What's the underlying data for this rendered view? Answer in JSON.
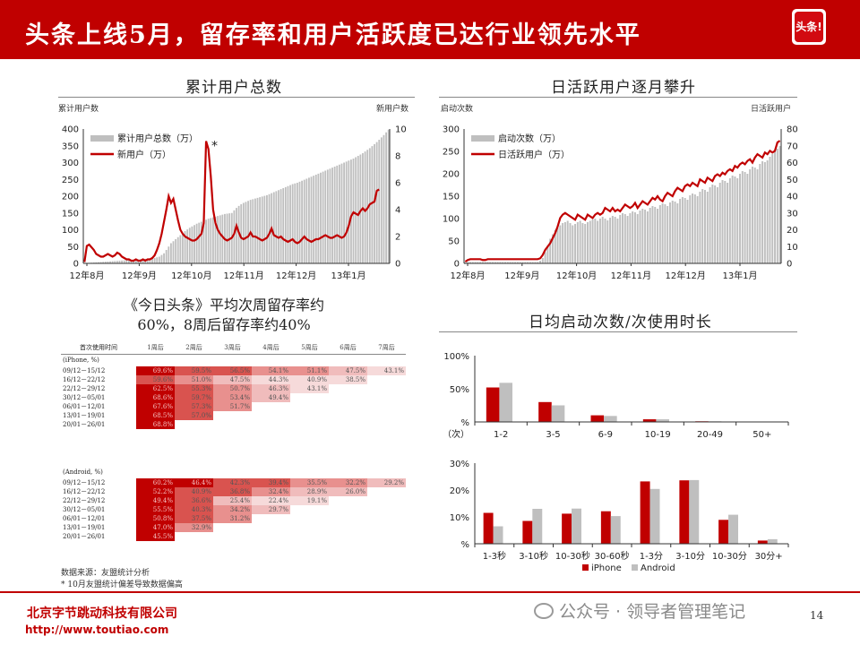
{
  "header": {
    "title": "头条上线5月，留存率和用户活跃度已达行业领先水平",
    "logo_text": "头条!",
    "colors": {
      "brand_red": "#c00000",
      "bar_gray": "#bfbfbf"
    }
  },
  "panel1": {
    "title": "累计用户总数",
    "left_axis_label": "累计用户数",
    "right_axis_label": "新用户数",
    "asterisk": "*"
  },
  "panel2": {
    "title": "日活跃用户逐月攀升",
    "left_axis_label": "启动次数",
    "right_axis_label": "日活跃用户"
  },
  "retention": {
    "heading_line1": "《今日头条》平均次周留存率约",
    "heading_line2": "60%，8周后留存率约40%",
    "header": [
      "首次使用时间",
      "1周后",
      "2周后",
      "3周后",
      "4周后",
      "5周后",
      "6周后",
      "7周后"
    ],
    "iphone_label": "(iPhone, %)",
    "iphone_rows": [
      {
        "period": "09/12－15/12",
        "values": [
          "69.6%",
          "59.5%",
          "56.5%",
          "54.1%",
          "51.1%",
          "47.5%",
          "43.1%"
        ]
      },
      {
        "period": "16/12－22/12",
        "values": [
          "59.6%",
          "51.0%",
          "47.5%",
          "44.3%",
          "40.9%",
          "38.5%"
        ]
      },
      {
        "period": "22/12－29/12",
        "values": [
          "62.5%",
          "55.3%",
          "50.7%",
          "46.3%",
          "43.1%"
        ]
      },
      {
        "period": "30/12－05/01",
        "values": [
          "68.6%",
          "59.7%",
          "53.4%",
          "49.4%"
        ]
      },
      {
        "period": "06/01－12/01",
        "values": [
          "67.6%",
          "57.3%",
          "51.7%"
        ]
      },
      {
        "period": "13/01－19/01",
        "values": [
          "68.5%",
          "57.0%"
        ]
      },
      {
        "period": "20/01－26/01",
        "values": [
          "68.8%"
        ]
      }
    ],
    "android_label": "(Android, %)",
    "android_rows": [
      {
        "period": "09/12－15/12",
        "values": [
          "60.2%",
          "46.4%",
          "42.3%",
          "39.4%",
          "35.5%",
          "32.2%",
          "29.2%"
        ]
      },
      {
        "period": "16/12－22/12",
        "values": [
          "52.2%",
          "40.9%",
          "36.8%",
          "32.4%",
          "28.9%",
          "26.0%"
        ]
      },
      {
        "period": "22/12－29/12",
        "values": [
          "49.4%",
          "36.6%",
          "25.4%",
          "22.4%",
          "19.1%"
        ]
      },
      {
        "period": "30/12－05/01",
        "values": [
          "55.5%",
          "40.3%",
          "34.2%",
          "29.7%"
        ]
      },
      {
        "period": "06/01－12/01",
        "values": [
          "50.8%",
          "37.5%",
          "31.2%"
        ]
      },
      {
        "period": "13/01－19/01",
        "values": [
          "47.0%",
          "32.9%"
        ]
      },
      {
        "period": "20/01－26/01",
        "values": [
          "45.5%"
        ]
      }
    ],
    "source_line1": "数据来源：友盟统计分析",
    "source_line2": "* 10月友盟统计偏差导致数据偏高"
  },
  "panel3": {
    "title": "日均启动次数/次使用时长"
  },
  "footer": {
    "company": "北京字节跳动科技有限公司",
    "url": "http://www.toutiao.com",
    "watermark": "公众号 · 领导者管理笔记",
    "page_number": "14"
  },
  "chart_data": [
    {
      "type": "bar",
      "subtype": "bar+line (dual axis)",
      "title": "累计用户总数",
      "ylabel": "累计用户数",
      "y2label": "新用户数",
      "ylim": [
        0,
        400
      ],
      "y2lim": [
        0,
        10
      ],
      "x_tick_labels": [
        "12年8月",
        "12年9月",
        "12年10月",
        "12年11月",
        "12年12月",
        "13年1月"
      ],
      "y_ticks": [
        "0",
        "50",
        "100",
        "150",
        "200",
        "250",
        "300",
        "350",
        "400"
      ],
      "y2_ticks": [
        "0",
        "2",
        "4",
        "6",
        "8",
        "10"
      ],
      "annotation": "*",
      "legend": "top-left",
      "series": [
        {
          "name": "累计用户总数（万）",
          "kind": "bar",
          "axis": "left",
          "values": [
            0.5,
            1,
            1.5,
            2,
            2.5,
            3,
            3.5,
            4,
            4.5,
            5,
            5.5,
            6,
            6.5,
            7,
            7.5,
            8,
            8.5,
            9,
            9.5,
            10,
            10.5,
            11,
            11.5,
            12,
            12.5,
            13,
            13.5,
            14,
            14.5,
            15,
            16,
            18,
            20,
            25,
            30,
            40,
            50,
            60,
            66,
            72,
            78,
            84,
            90,
            96,
            101,
            106,
            110,
            114,
            118,
            121,
            124,
            127,
            130,
            133,
            135,
            137,
            139,
            141,
            143,
            145,
            147,
            148,
            149,
            150,
            158,
            165,
            171,
            176,
            180,
            183,
            186,
            189,
            191,
            193,
            195,
            197,
            199,
            201,
            203,
            206,
            209,
            212,
            215,
            218,
            221,
            224,
            227,
            230,
            233,
            236,
            238,
            240,
            243,
            246,
            249,
            252,
            255,
            258,
            261,
            264,
            267,
            270,
            273,
            276,
            279,
            282,
            285,
            288,
            291,
            294,
            297,
            300,
            303,
            306,
            309,
            312,
            316,
            320,
            324,
            328,
            333,
            338,
            343,
            349,
            355,
            361,
            368,
            375,
            382,
            390,
            398
          ]
        },
        {
          "name": "新用户（万）",
          "kind": "line",
          "axis": "right",
          "values": [
            0.1,
            1.3,
            1.4,
            1.2,
            1,
            0.7,
            0.6,
            0.5,
            0.5,
            0.6,
            0.7,
            0.6,
            0.5,
            0.6,
            0.8,
            0.7,
            0.5,
            0.4,
            0.3,
            0.3,
            0.2,
            0.2,
            0.3,
            0.2,
            0.2,
            0.3,
            0.2,
            0.3,
            0.3,
            0.4,
            0.6,
            1,
            1.5,
            2.2,
            3.1,
            4,
            5,
            4.5,
            4.8,
            4,
            3.2,
            2.5,
            2.2,
            2,
            1.9,
            1.8,
            1.7,
            1.7,
            1.8,
            2,
            2.2,
            3,
            9.1,
            8.5,
            6.5,
            4,
            3,
            2.5,
            2.2,
            2,
            1.8,
            1.7,
            1.8,
            1.9,
            2.2,
            2.8,
            2.3,
            1.9,
            1.8,
            1.9,
            2,
            2.3,
            2,
            2,
            1.9,
            1.8,
            1.7,
            1.8,
            1.9,
            2.2,
            2.6,
            2.1,
            2,
            1.9,
            2,
            1.8,
            1.7,
            1.6,
            1.7,
            1.8,
            1.6,
            1.5,
            1.6,
            1.8,
            2,
            1.8,
            1.7,
            1.6,
            1.7,
            1.8,
            1.8,
            1.9,
            2,
            2.1,
            2,
            1.9,
            1.9,
            2,
            2.1,
            2,
            1.9,
            2,
            2.3,
            2.8,
            3.5,
            3.8,
            3.7,
            3.6,
            3.9,
            4.1,
            3.9,
            4.1,
            4.4,
            4.5,
            4.6,
            5.4,
            5.5
          ]
        }
      ]
    },
    {
      "type": "bar",
      "subtype": "bar+line (dual axis)",
      "title": "日活跃用户逐月攀升",
      "ylabel": "启动次数",
      "y2label": "日活跃用户",
      "ylim": [
        0,
        300
      ],
      "y2lim": [
        0,
        80
      ],
      "x_tick_labels": [
        "12年8月",
        "12年9月",
        "12年10月",
        "12年11月",
        "12年12月",
        "13年1月"
      ],
      "y_ticks": [
        "0",
        "50",
        "100",
        "150",
        "200",
        "250",
        "300"
      ],
      "y2_ticks": [
        "0",
        "10",
        "20",
        "30",
        "40",
        "50",
        "60",
        "70",
        "80"
      ],
      "legend": "top-left",
      "series": [
        {
          "name": "启动次数（万）",
          "kind": "bar",
          "axis": "left",
          "values": [
            2,
            3,
            3,
            3,
            3,
            3,
            3,
            3,
            3,
            3,
            3,
            3,
            3,
            3,
            3,
            3,
            3,
            3,
            3,
            3,
            3,
            3,
            3,
            3,
            3,
            3,
            3,
            3,
            3,
            3,
            6,
            12,
            25,
            40,
            55,
            65,
            75,
            80,
            85,
            90,
            92,
            95,
            90,
            85,
            88,
            92,
            95,
            90,
            88,
            92,
            95,
            98,
            100,
            95,
            100,
            104,
            100,
            96,
            102,
            106,
            104,
            100,
            108,
            112,
            110,
            106,
            112,
            116,
            114,
            110,
            118,
            122,
            120,
            116,
            124,
            128,
            126,
            122,
            130,
            134,
            132,
            128,
            136,
            140,
            138,
            134,
            144,
            148,
            146,
            142,
            152,
            156,
            154,
            150,
            160,
            166,
            164,
            160,
            170,
            176,
            174,
            170,
            180,
            186,
            184,
            180,
            190,
            196,
            194,
            190,
            200,
            206,
            204,
            200,
            210,
            216,
            214,
            210,
            222,
            228,
            226,
            230,
            238,
            244,
            250,
            256,
            262
          ]
        },
        {
          "name": "日活跃用户（万）",
          "kind": "line",
          "axis": "right",
          "values": [
            1,
            2,
            2.5,
            2.5,
            2.5,
            2.5,
            2.5,
            2,
            2,
            2.5,
            2.5,
            2.5,
            2.5,
            2.5,
            2.5,
            2.5,
            2.5,
            2.5,
            2.5,
            2.5,
            2.5,
            2.5,
            2.5,
            2.5,
            2.5,
            2.5,
            2.5,
            2.5,
            2.5,
            2.5,
            3,
            5,
            8,
            10,
            12,
            15,
            18,
            22,
            27,
            29,
            30,
            29,
            28,
            27,
            26,
            29,
            28,
            27,
            26,
            29,
            28,
            27,
            29,
            30,
            29,
            30,
            33,
            32,
            31,
            33,
            31,
            32,
            31,
            33,
            35,
            34,
            33,
            34,
            36,
            33,
            35,
            37,
            36,
            35,
            37,
            39,
            38,
            40,
            38,
            37,
            40,
            42,
            41,
            40,
            43,
            45,
            44,
            43,
            46,
            47,
            46,
            48,
            47,
            46,
            50,
            49,
            48,
            51,
            50,
            49,
            52,
            53,
            52,
            54,
            53,
            55,
            56,
            55,
            58,
            57,
            59,
            60,
            59,
            61,
            62,
            60,
            63,
            65,
            64,
            63,
            66,
            65,
            67,
            66,
            67,
            72,
            73
          ]
        }
      ]
    },
    {
      "type": "bar",
      "title": "日均启动次数",
      "xlabel": "（次）",
      "categories": [
        "1-2",
        "3-5",
        "6-9",
        "10-19",
        "20-49",
        "50+"
      ],
      "ylim": [
        0,
        100
      ],
      "y_ticks": [
        "%",
        "50%",
        "100%"
      ],
      "series": [
        {
          "name": "iPhone",
          "values": [
            52,
            30,
            10,
            4,
            1,
            0
          ]
        },
        {
          "name": "Android",
          "values": [
            59,
            25,
            9,
            4,
            1,
            0
          ]
        }
      ]
    },
    {
      "type": "bar",
      "title": "次使用时长",
      "categories": [
        "1-3秒",
        "3-10秒",
        "10-30秒",
        "30-60秒",
        "1-3分",
        "3-10分",
        "10-30分",
        "30分+"
      ],
      "ylim": [
        0,
        30
      ],
      "y_ticks": [
        "%",
        "10%",
        "20%",
        "30%"
      ],
      "legend": "bottom",
      "series": [
        {
          "name": "iPhone",
          "values": [
            11.5,
            8.5,
            11.2,
            12.1,
            23.2,
            23.6,
            8.9,
            1.2
          ]
        },
        {
          "name": "Android",
          "values": [
            6.5,
            13,
            13.1,
            10.3,
            20.4,
            23.7,
            10.8,
            1.7
          ]
        }
      ]
    }
  ]
}
